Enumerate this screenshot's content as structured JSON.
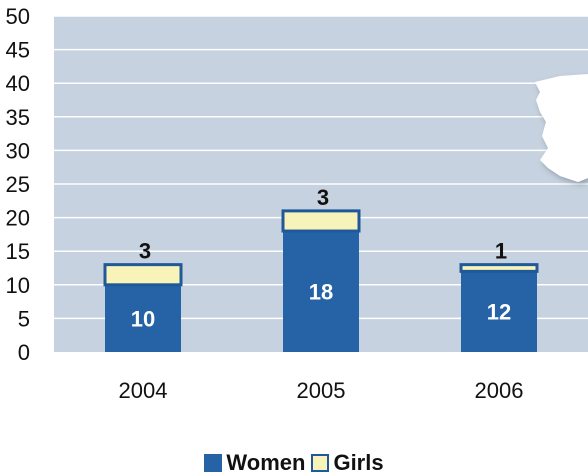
{
  "chart_data": {
    "type": "bar",
    "stacked": true,
    "categories": [
      "2004",
      "2005",
      "2006"
    ],
    "series": [
      {
        "name": "Women",
        "values": [
          10,
          18,
          12
        ],
        "color": "#2563a6"
      },
      {
        "name": "Girls",
        "values": [
          3,
          3,
          1
        ],
        "color": "#f7f3b9"
      }
    ],
    "ylim": [
      0,
      50
    ],
    "yticks": [
      0,
      5,
      10,
      15,
      20,
      25,
      30,
      35,
      40,
      45,
      50
    ],
    "grid": true,
    "legend": "bottom",
    "plot_background": "#c7d2e0",
    "gridline_color": "#ffffff",
    "map_decoration": "iberian-peninsula-map-icon"
  }
}
